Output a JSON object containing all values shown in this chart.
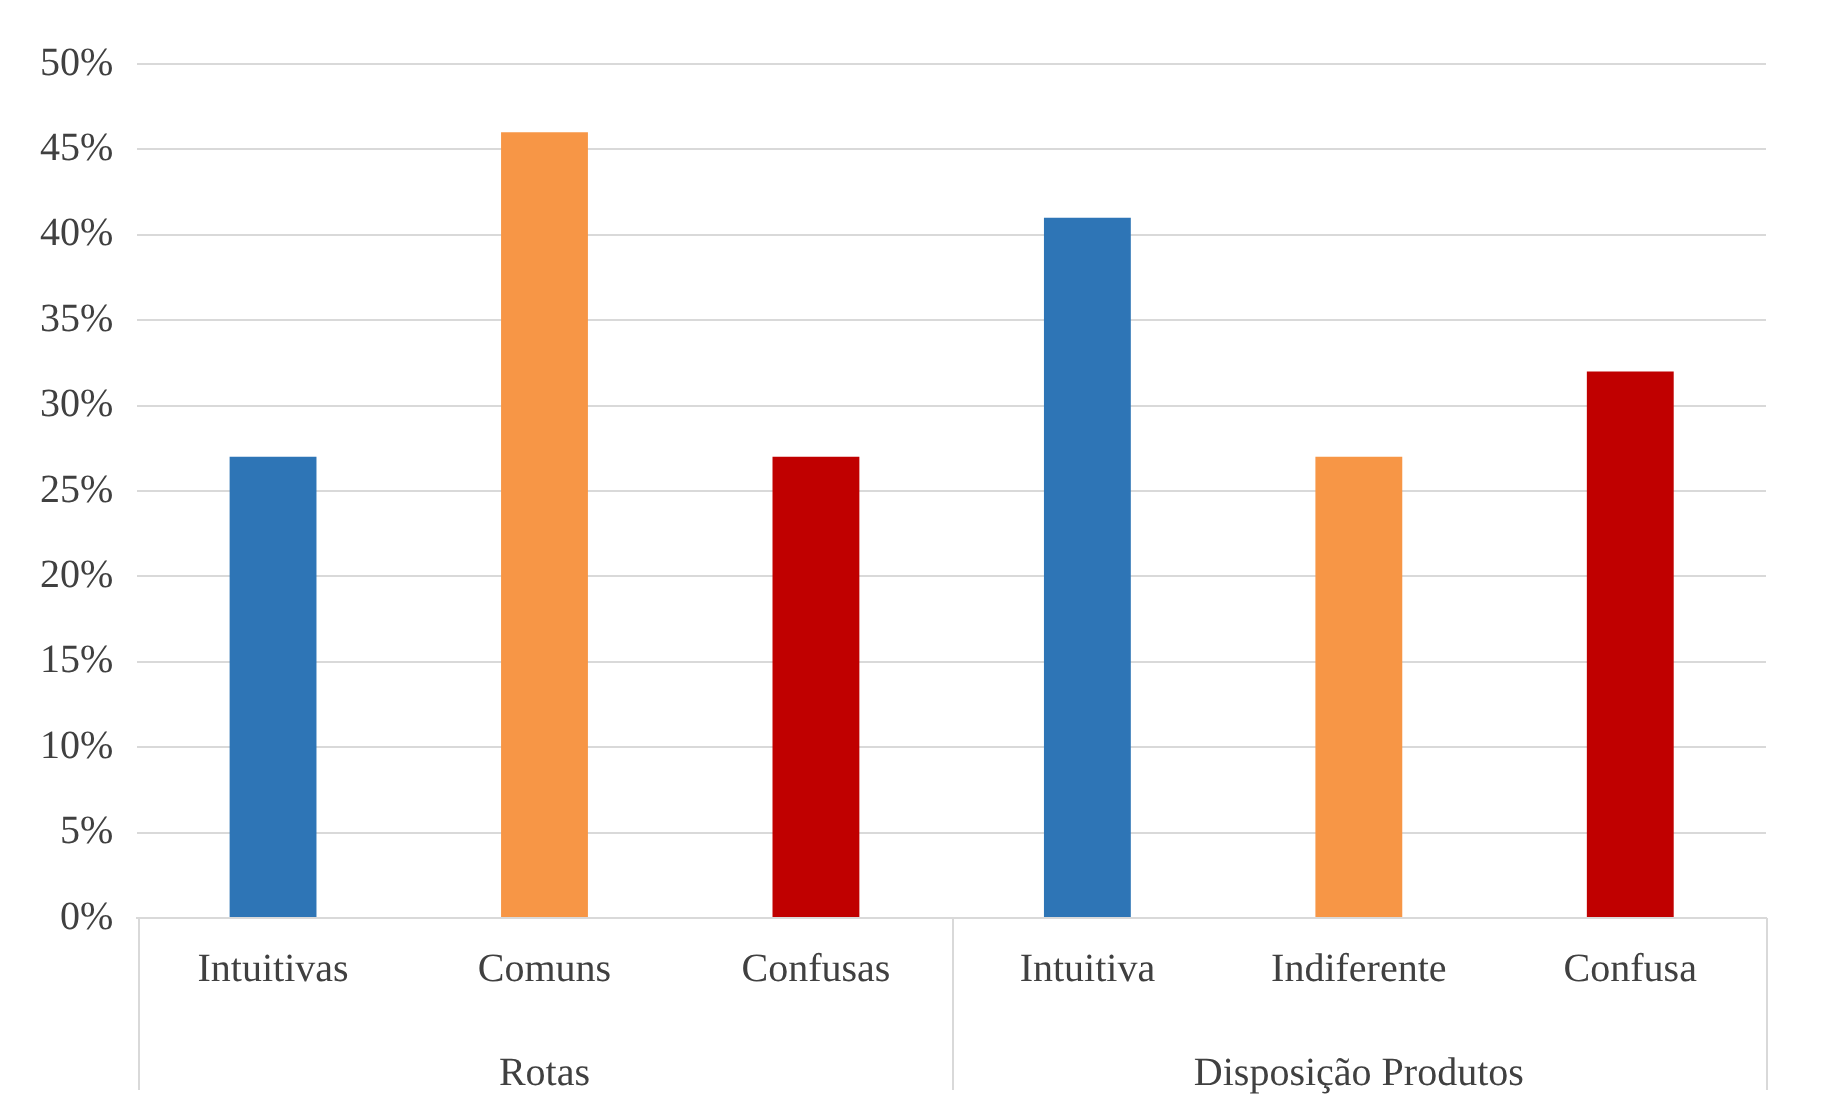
{
  "chart_data": {
    "type": "bar",
    "categories": [
      "Intuitivas",
      "Comuns",
      "Confusas",
      "Intuitiva",
      "Indiferente",
      "Confusa"
    ],
    "values": [
      27,
      46,
      27,
      41,
      27,
      32
    ],
    "colors": [
      "#2e75b6",
      "#f79646",
      "#c00000",
      "#2e75b6",
      "#f79646",
      "#c00000"
    ],
    "ylim": [
      0,
      50
    ],
    "yticks": [
      {
        "value": 0,
        "label": "0%"
      },
      {
        "value": 5,
        "label": "5%"
      },
      {
        "value": 10,
        "label": "10%"
      },
      {
        "value": 15,
        "label": "15%"
      },
      {
        "value": 20,
        "label": "20%"
      },
      {
        "value": 25,
        "label": "25%"
      },
      {
        "value": 30,
        "label": "30%"
      },
      {
        "value": 35,
        "label": "35%"
      },
      {
        "value": 40,
        "label": "40%"
      },
      {
        "value": 45,
        "label": "45%"
      },
      {
        "value": 50,
        "label": "50%"
      }
    ],
    "grid": "y",
    "legend": false,
    "annotations": [
      "Rotas",
      "Disposição Produtos"
    ]
  }
}
